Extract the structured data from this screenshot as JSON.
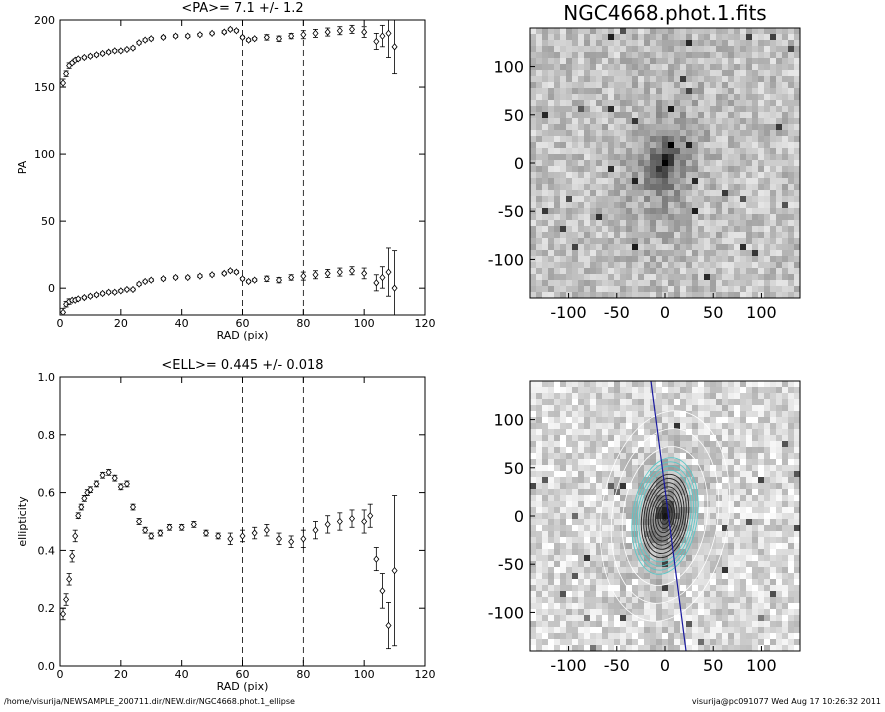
{
  "chart_data": [
    {
      "type": "scatter",
      "title": "<PA>=   7.1 +/-   1.2",
      "x_label": "RAD (pix)",
      "y_label": "PA",
      "xlim": [
        0,
        120
      ],
      "ylim": [
        -20,
        200
      ],
      "xticks": [
        0,
        20,
        40,
        60,
        80,
        100,
        120
      ],
      "yticks": [
        0,
        50,
        100,
        150,
        200
      ],
      "vlines": [
        60,
        80
      ],
      "color": "#000000",
      "series": [
        {
          "x": [
            1,
            2,
            3,
            4,
            5,
            6,
            8,
            10,
            12,
            14,
            16,
            18,
            20,
            22,
            24,
            26,
            28,
            30,
            34,
            38,
            42,
            46,
            50,
            54,
            56,
            58,
            60,
            62,
            64,
            68,
            72,
            76,
            80,
            84,
            88,
            92,
            96,
            100,
            104,
            106,
            108,
            110
          ],
          "values": [
            153,
            160,
            166,
            168,
            170,
            171,
            172,
            173,
            174,
            175,
            176,
            177,
            177,
            178,
            179,
            183,
            185,
            186,
            187,
            188,
            188,
            189,
            190,
            191,
            193,
            192,
            187,
            185,
            186,
            187,
            186,
            188,
            189,
            190,
            191,
            192,
            193,
            191,
            184,
            188,
            190,
            180
          ],
          "errors": [
            3,
            2,
            2,
            1,
            1,
            1,
            1,
            1,
            1,
            1,
            1,
            1,
            1,
            1,
            1,
            1,
            1,
            1,
            1,
            1,
            1,
            1,
            1,
            1,
            1,
            1,
            1,
            1,
            1,
            2,
            2,
            2,
            3,
            3,
            3,
            3,
            3,
            4,
            6,
            8,
            18,
            20
          ]
        },
        {
          "x": [
            1,
            2,
            3,
            4,
            5,
            6,
            8,
            10,
            12,
            14,
            16,
            18,
            20,
            22,
            24,
            26,
            28,
            30,
            34,
            38,
            42,
            46,
            50,
            54,
            56,
            58,
            60,
            62,
            64,
            68,
            72,
            76,
            80,
            84,
            88,
            92,
            96,
            100,
            104,
            106,
            108,
            110
          ],
          "values": [
            -18,
            -12,
            -10,
            -9,
            -9,
            -8,
            -7,
            -6,
            -5,
            -4,
            -3,
            -3,
            -2,
            -1,
            -1,
            3,
            5,
            6,
            7,
            8,
            8,
            9,
            10,
            11,
            13,
            12,
            7,
            5,
            6,
            7,
            6,
            8,
            9,
            10,
            11,
            12,
            13,
            11,
            4,
            8,
            12,
            0
          ],
          "errors": [
            3,
            2,
            2,
            1,
            1,
            1,
            1,
            1,
            1,
            1,
            1,
            1,
            1,
            1,
            1,
            1,
            1,
            1,
            1,
            1,
            1,
            1,
            1,
            1,
            1,
            1,
            1,
            1,
            1,
            2,
            2,
            2,
            3,
            3,
            3,
            3,
            3,
            4,
            6,
            8,
            18,
            28
          ]
        }
      ]
    },
    {
      "type": "image",
      "title": "NGC4668.phot.1.fits",
      "xlim": [
        -140,
        140
      ],
      "ylim": [
        -140,
        140
      ],
      "xticks": [
        -100,
        -50,
        0,
        50,
        100
      ],
      "yticks": [
        -100,
        -50,
        0,
        50,
        100
      ]
    },
    {
      "type": "scatter",
      "title": "<ELL>= 0.445 +/-  0.018",
      "x_label": "RAD (pix)",
      "y_label": "ellipticity",
      "xlim": [
        0,
        120
      ],
      "ylim": [
        0,
        1
      ],
      "xticks": [
        0,
        20,
        40,
        60,
        80,
        100,
        120
      ],
      "yticks": [
        {
          "value": 0,
          "label": "0.0"
        },
        0.2,
        0.4,
        0.6,
        0.8,
        {
          "value": 1,
          "label": "1.0"
        }
      ],
      "vlines": [
        60,
        80
      ],
      "color": "#000000",
      "series": [
        {
          "x": [
            1,
            2,
            3,
            4,
            5,
            6,
            7,
            8,
            9,
            10,
            12,
            14,
            16,
            18,
            20,
            22,
            24,
            26,
            28,
            30,
            33,
            36,
            40,
            44,
            48,
            52,
            56,
            60,
            64,
            68,
            72,
            76,
            80,
            84,
            88,
            92,
            96,
            100,
            102,
            104,
            106,
            108,
            110
          ],
          "values": [
            0.18,
            0.23,
            0.3,
            0.38,
            0.45,
            0.52,
            0.55,
            0.58,
            0.6,
            0.61,
            0.63,
            0.66,
            0.67,
            0.65,
            0.62,
            0.63,
            0.55,
            0.5,
            0.47,
            0.45,
            0.46,
            0.48,
            0.48,
            0.49,
            0.46,
            0.45,
            0.44,
            0.45,
            0.46,
            0.47,
            0.44,
            0.43,
            0.44,
            0.47,
            0.49,
            0.5,
            0.51,
            0.5,
            0.52,
            0.37,
            0.26,
            0.14,
            0.33
          ],
          "errors": [
            0.02,
            0.02,
            0.02,
            0.02,
            0.02,
            0.01,
            0.01,
            0.01,
            0.01,
            0.01,
            0.01,
            0.01,
            0.01,
            0.01,
            0.01,
            0.01,
            0.01,
            0.01,
            0.01,
            0.01,
            0.01,
            0.01,
            0.01,
            0.01,
            0.01,
            0.01,
            0.02,
            0.02,
            0.02,
            0.02,
            0.02,
            0.02,
            0.03,
            0.03,
            0.03,
            0.03,
            0.03,
            0.04,
            0.04,
            0.04,
            0.06,
            0.08,
            0.26
          ]
        }
      ]
    },
    {
      "type": "image",
      "xlim": [
        -140,
        140
      ],
      "ylim": [
        -140,
        140
      ],
      "xticks": [
        -100,
        -50,
        0,
        50,
        100
      ],
      "yticks": [
        -100,
        -50,
        0,
        50,
        100
      ]
    }
  ],
  "footer": {
    "left": "/home/visurija/NEWSAMPLE_200711.dir/NEW.dir/NGC4668.phot.1_ellipse",
    "right": "visurija@pc091077  Wed Aug 17 10:26:32 2011"
  }
}
